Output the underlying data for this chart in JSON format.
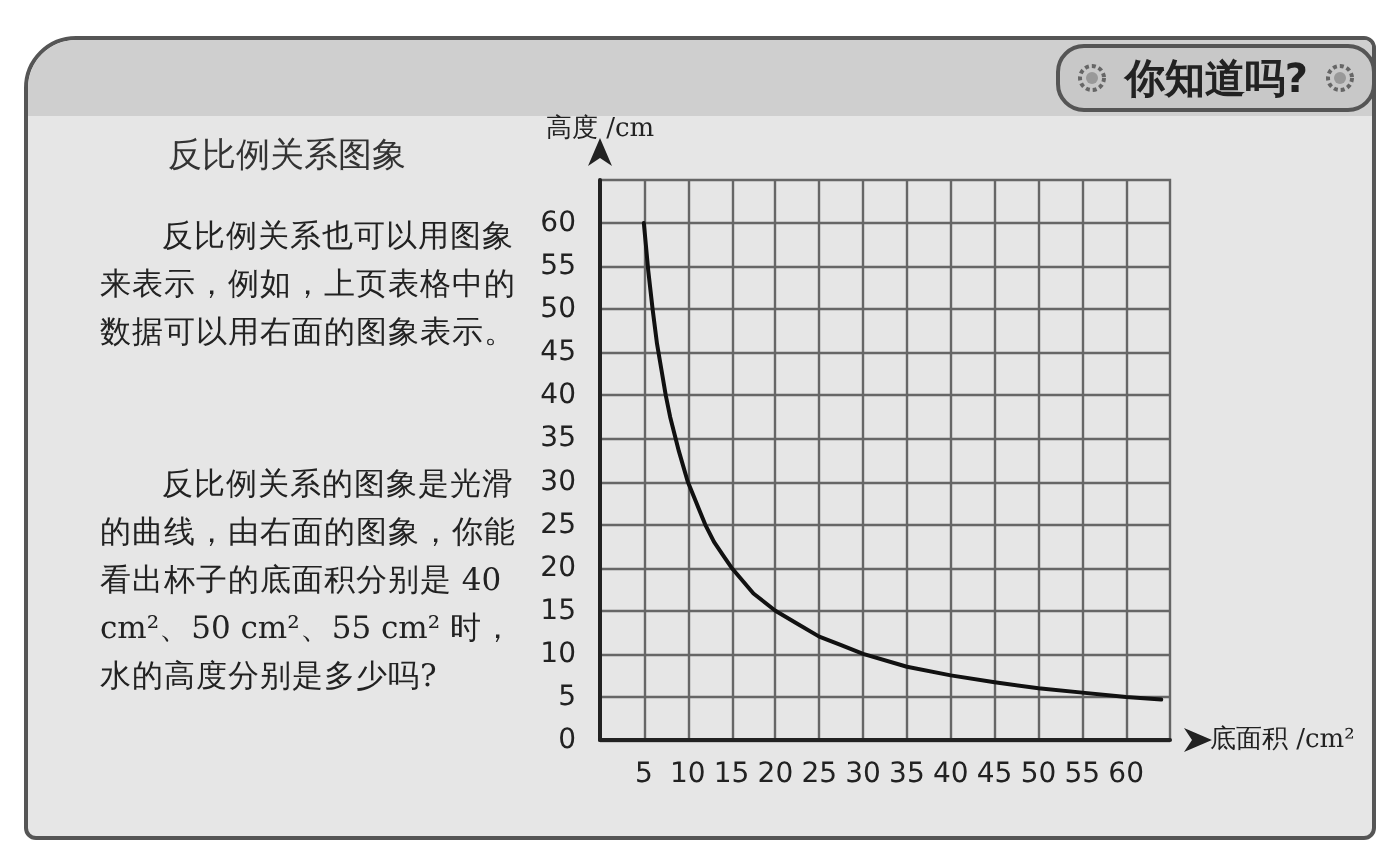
{
  "chart_data": {
    "type": "line",
    "title": "你知道吗?",
    "subtitle": "反比例关系图象",
    "annotations": [
      "反比例关系也可以用图象来表示，例如，上页表格中的数据可以用右面的图象表示。",
      "反比例关系的图象是光滑的曲线，由右面的图象，你能看出杯子的底面积分别是 40 cm²、50 cm²、55 cm² 时，水的高度分别是多少吗?"
    ],
    "xlabel": "底面积 /cm²",
    "ylabel": "高度 /cm",
    "x": [
      5,
      5.5,
      6,
      6.5,
      7,
      7.5,
      8,
      9,
      10,
      11,
      12,
      13,
      14,
      15,
      17.5,
      20,
      22.5,
      25,
      27.5,
      30,
      35,
      40,
      45,
      50,
      55,
      60,
      64
    ],
    "series": [
      {
        "color": "#111111",
        "values": [
          60,
          54.5,
          50,
          46,
          43,
          40,
          37.5,
          33.5,
          30,
          27.5,
          25,
          23,
          21.5,
          20,
          17,
          15,
          13.5,
          12,
          11,
          10,
          8.5,
          7.5,
          6.7,
          6,
          5.5,
          5,
          4.7
        ]
      }
    ],
    "xlim": [
      0,
      65
    ],
    "xticks": [
      5,
      10,
      15,
      20,
      25,
      30,
      35,
      40,
      45,
      50,
      55,
      60
    ],
    "ylim": [
      0,
      65
    ],
    "yticks": [
      0,
      5,
      10,
      15,
      20,
      25,
      30,
      35,
      40,
      45,
      50,
      55,
      60
    ],
    "grid": true,
    "marker": "none",
    "line_style": "solid"
  }
}
